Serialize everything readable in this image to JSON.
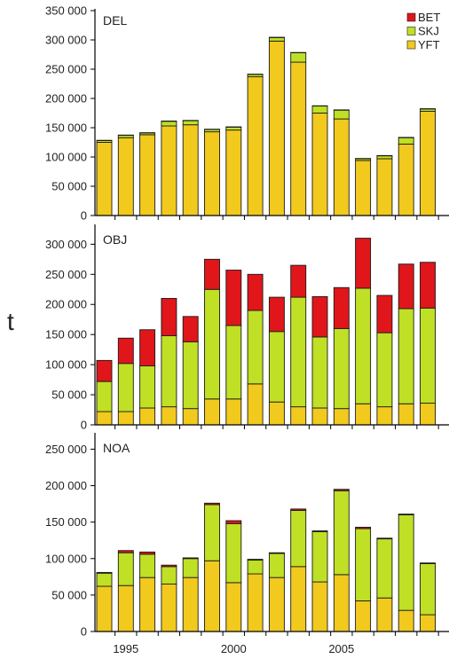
{
  "chart_data": {
    "type": "bar",
    "stacked": true,
    "ylabel": "t",
    "colors": {
      "BET": "#e0161b",
      "SKJ": "#bfe025",
      "YFT": "#f2c91d"
    },
    "legend": {
      "placement": "top-right",
      "items": [
        "BET",
        "SKJ",
        "YFT"
      ]
    },
    "x_years": [
      1994,
      1995,
      1996,
      1997,
      1998,
      1999,
      2000,
      2001,
      2002,
      2003,
      2004,
      2005,
      2006,
      2007,
      2008,
      2009
    ],
    "x_tick_labels": [
      {
        "year": 1995,
        "label": "1995"
      },
      {
        "year": 2000,
        "label": "2000"
      },
      {
        "year": 2005,
        "label": "2005"
      }
    ],
    "panels": [
      {
        "label": "DEL",
        "ylim": [
          0,
          350000
        ],
        "yticks": [
          0,
          50000,
          100000,
          150000,
          200000,
          250000,
          300000,
          350000
        ],
        "ytick_labels": [
          "0",
          "50 000",
          "100 000",
          "150 000",
          "200 000",
          "250 000",
          "300 000",
          "350 000"
        ],
        "series": [
          {
            "name": "YFT",
            "values": [
              125000,
              133000,
              138000,
              153000,
              155000,
              143000,
              146000,
              237000,
              298000,
              262000,
              175000,
              165000,
              94000,
              97000,
              122000,
              178000
            ]
          },
          {
            "name": "SKJ",
            "values": [
              3000,
              4000,
              3000,
              8000,
              7000,
              4000,
              5000,
              4000,
              6000,
              16000,
              12000,
              15000,
              3000,
              5000,
              11000,
              4000
            ]
          },
          {
            "name": "BET",
            "values": [
              500,
              500,
              500,
              500,
              500,
              500,
              500,
              500,
              500,
              500,
              500,
              500,
              500,
              500,
              500,
              500
            ]
          }
        ]
      },
      {
        "label": "OBJ",
        "ylim": [
          0,
          330000
        ],
        "yticks": [
          0,
          50000,
          100000,
          150000,
          200000,
          250000,
          300000
        ],
        "ytick_labels": [
          "0",
          "50 000",
          "100 000",
          "150 000",
          "200 000",
          "250 000",
          "300 000"
        ],
        "series": [
          {
            "name": "YFT",
            "values": [
              22000,
              22000,
              28000,
              30000,
              27000,
              43000,
              43000,
              68000,
              38000,
              30000,
              28000,
              27000,
              35000,
              30000,
              35000,
              36000
            ]
          },
          {
            "name": "SKJ",
            "values": [
              50000,
              80000,
              70000,
              118000,
              111000,
              182000,
              122000,
              122000,
              117000,
              182000,
              118000,
              133000,
              192000,
              123000,
              158000,
              158000
            ]
          },
          {
            "name": "BET",
            "values": [
              35000,
              42000,
              60000,
              62000,
              42000,
              50000,
              92000,
              60000,
              57000,
              53000,
              67000,
              68000,
              83000,
              62000,
              74000,
              76000
            ]
          }
        ]
      },
      {
        "label": "NOA",
        "ylim": [
          0,
          270000
        ],
        "yticks": [
          0,
          50000,
          100000,
          150000,
          200000,
          250000
        ],
        "ytick_labels": [
          "0",
          "50 000",
          "100 000",
          "150 000",
          "200 000",
          "250 000"
        ],
        "series": [
          {
            "name": "YFT",
            "values": [
              62000,
              63000,
              74000,
              65000,
              74000,
              97000,
              67000,
              79000,
              74000,
              89000,
              68000,
              78000,
              42000,
              46000,
              29000,
              23000
            ]
          },
          {
            "name": "SKJ",
            "values": [
              18000,
              45000,
              32000,
              24000,
              26000,
              77000,
              81000,
              19000,
              33000,
              77000,
              69000,
              115000,
              99000,
              81000,
              131000,
              70000
            ]
          },
          {
            "name": "BET",
            "values": [
              1000,
              3000,
              3000,
              2000,
              1000,
              2000,
              4000,
              1000,
              1000,
              2000,
              1000,
              2000,
              2000,
              1000,
              1000,
              1000
            ]
          }
        ]
      }
    ]
  }
}
